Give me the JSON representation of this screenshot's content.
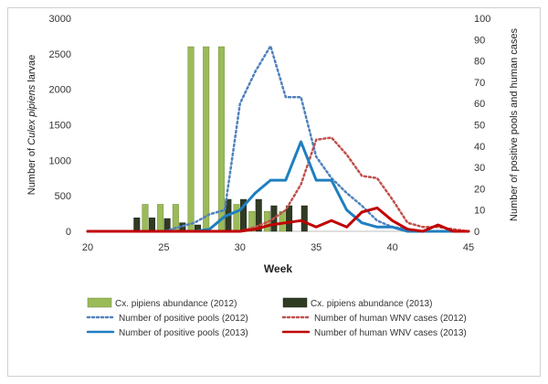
{
  "chart_data": {
    "type": "bar",
    "xlabel": "Week",
    "ylabel_left_parts": [
      "Number of ",
      "Culex pipiens",
      " larvae"
    ],
    "ylabel_right": "Number of positive pools and human cases",
    "x_ticks": [
      20,
      25,
      30,
      35,
      40,
      45
    ],
    "xlim": [
      20,
      45
    ],
    "y_left_ticks": [
      0,
      500,
      1000,
      1500,
      2000,
      2500,
      3000
    ],
    "ylim_left": [
      0,
      3000
    ],
    "y_right_ticks": [
      0,
      10,
      20,
      30,
      40,
      50,
      60,
      70,
      80,
      90,
      100
    ],
    "ylim_right": [
      0,
      100
    ],
    "grid": false,
    "legend_position": "bottom",
    "colors": {
      "bars_2012": "#9bbb59",
      "bars_2013": "#2f3b23",
      "pools_2012": "#4f81bd",
      "human_2012": "#c0504d",
      "pools_2013": "#1f7fc0",
      "human_2013": "#c00000"
    },
    "series": [
      {
        "name": "Cx. pipiens abundance (2012)",
        "kind": "bar",
        "axis": "left",
        "x": [
          24,
          25,
          26,
          27,
          28,
          29,
          30,
          31,
          32,
          33
        ],
        "values": [
          380,
          380,
          380,
          2600,
          2600,
          2600,
          380,
          280,
          280,
          280
        ]
      },
      {
        "name": "Cx. pipiens abundance (2013)",
        "kind": "bar",
        "axis": "left",
        "x": [
          23,
          24,
          25,
          26,
          27,
          29,
          30,
          31,
          32,
          33,
          34
        ],
        "values": [
          190,
          190,
          180,
          120,
          90,
          450,
          450,
          450,
          360,
          360,
          360
        ]
      },
      {
        "name": "Number of positive pools (2012)",
        "kind": "line",
        "style": "dotted",
        "axis": "right",
        "x": [
          20,
          25,
          26,
          27,
          28,
          29,
          30,
          31,
          32,
          33,
          34,
          35,
          36,
          37,
          38,
          39,
          40,
          41,
          42,
          43,
          44,
          45
        ],
        "values": [
          0,
          0,
          2,
          4,
          8,
          10,
          60,
          75,
          87,
          63,
          63,
          35,
          25,
          18,
          12,
          5,
          2,
          1,
          0,
          0,
          0,
          0
        ]
      },
      {
        "name": "Number of human WNV cases (2012)",
        "kind": "line",
        "style": "dotted",
        "axis": "right",
        "x": [
          20,
          30,
          31,
          32,
          33,
          34,
          35,
          36,
          37,
          38,
          39,
          40,
          41,
          42,
          43,
          44,
          45
        ],
        "values": [
          0,
          0,
          2,
          5,
          10,
          22,
          43,
          44,
          36,
          26,
          25,
          15,
          4,
          2,
          2,
          1,
          0
        ]
      },
      {
        "name": "Number of positive pools (2013)",
        "kind": "line",
        "style": "solid",
        "axis": "right",
        "x": [
          20,
          27,
          28,
          29,
          30,
          31,
          32,
          33,
          34,
          35,
          36,
          37,
          38,
          39,
          40,
          41,
          42,
          43,
          44,
          45
        ],
        "values": [
          0,
          0,
          1,
          7,
          10,
          18,
          24,
          24,
          42,
          24,
          24,
          10,
          4,
          2,
          2,
          0,
          0,
          0,
          0,
          0
        ]
      },
      {
        "name": "Number of human WNV cases (2013)",
        "kind": "line",
        "style": "solid",
        "axis": "right",
        "x": [
          20,
          30,
          31,
          32,
          33,
          34,
          35,
          36,
          37,
          38,
          39,
          40,
          41,
          42,
          43,
          44,
          45
        ],
        "values": [
          0,
          0,
          1,
          3,
          4,
          5,
          2,
          5,
          2,
          9,
          11,
          5,
          1,
          0,
          3,
          0,
          0
        ]
      }
    ],
    "legend": [
      "Cx. pipiens abundance (2012)",
      "Cx. pipiens abundance (2013)",
      "Number of positive pools (2012)",
      "Number of human WNV cases (2012)",
      "Number of positive pools (2013)",
      "Number of human WNV cases (2013)"
    ]
  }
}
